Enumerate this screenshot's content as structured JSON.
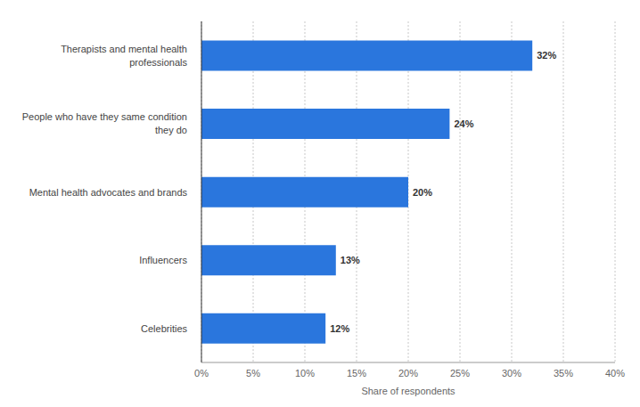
{
  "chart_data": {
    "type": "bar",
    "orientation": "horizontal",
    "categories": [
      "Therapists and mental health professionals",
      "People who have they same condition they do",
      "Mental health advocates and brands",
      "Influencers",
      "Celebrities"
    ],
    "values": [
      32,
      24,
      20,
      13,
      12
    ],
    "value_labels": [
      "32%",
      "24%",
      "20%",
      "13%",
      "12%"
    ],
    "data_labels": true,
    "color": "#2a76dd",
    "x_label": "Share of respondents",
    "xlim": [
      0,
      40
    ],
    "xticks": [
      {
        "value": 0,
        "label": "0%"
      },
      {
        "value": 5,
        "label": "5%"
      },
      {
        "value": 10,
        "label": "10%"
      },
      {
        "value": 15,
        "label": "15%"
      },
      {
        "value": 20,
        "label": "20%"
      },
      {
        "value": 25,
        "label": "25%"
      },
      {
        "value": 30,
        "label": "30%"
      },
      {
        "value": 35,
        "label": "35%"
      },
      {
        "value": 40,
        "label": "40%"
      }
    ],
    "grid": true
  }
}
